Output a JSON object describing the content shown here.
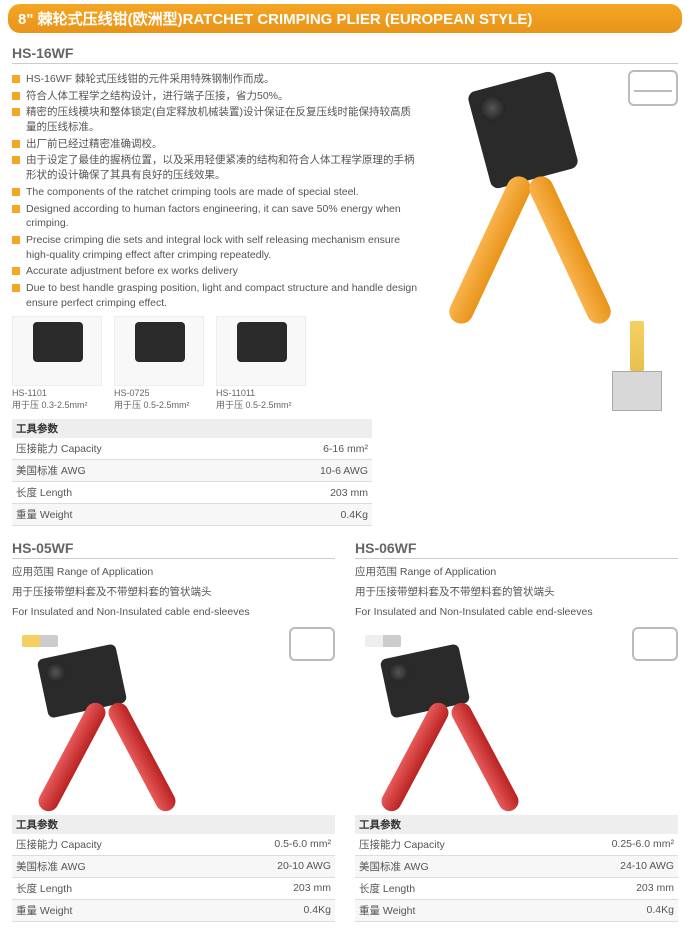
{
  "header": "8\" 棘轮式压线钳(欧洲型)RATCHET CRIMPING PLIER (EUROPEAN STYLE)",
  "hs16wf": {
    "model": "HS-16WF",
    "bullets_cn": [
      "HS-16WF 棘轮式压线钳的元件采用特殊钢制作而成。",
      "符合人体工程学之结构设计，进行端子压接，省力50%。",
      "精密的压线模块和整体锁定(自定释放机械装置)设计保证在反复压线时能保持较高质量的压线标准。",
      "出厂前已经过精密准确调校。",
      "由于设定了最佳的握柄位置，以及采用轻便紧凑的结构和符合人体工程学原理的手柄形状的设计确保了其具有良好的压线效果。"
    ],
    "bullets_en": [
      "The components of the ratchet crimping tools are made of special steel.",
      "Designed according to human factors engineering, it can save 50% energy when crimping.",
      "Precise crimping die sets and integral lock with self releasing mechanism ensure high-quality crimping effect after crimping repeatedly.",
      "Accurate adjustment before ex works delivery",
      "Due to best handle grasping position, light and compact structure and handle design ensure perfect crimping effect."
    ],
    "thumbs": [
      {
        "model": "HS-1101",
        "range": "用于压 0.3-2.5mm²"
      },
      {
        "model": "HS-0725",
        "range": "用于压 0.5-2.5mm²"
      },
      {
        "model": "HS-11011",
        "range": "用于压 0.5-2.5mm²"
      }
    ],
    "params_title": "工具参数",
    "params": [
      {
        "k": "压接能力 Capacity",
        "v": "6-16 mm²"
      },
      {
        "k": "美国标准 AWG",
        "v": "10-6 AWG"
      },
      {
        "k": "长度 Length",
        "v": "203 mm"
      },
      {
        "k": "重量 Weight",
        "v": "0.4Kg"
      }
    ]
  },
  "hs05wf": {
    "model": "HS-05WF",
    "range_title": "应用范围 Range of Application",
    "range_cn": "用于压接带塑料套及不带塑料套的管状端头",
    "range_en": "For Insulated and Non-Insulated cable end-sleeves",
    "params_title": "工具参数",
    "params": [
      {
        "k": "压接能力 Capacity",
        "v": "0.5-6.0 mm²"
      },
      {
        "k": "美国标准 AWG",
        "v": "20-10 AWG"
      },
      {
        "k": "长度 Length",
        "v": "203 mm"
      },
      {
        "k": "重量 Weight",
        "v": "0.4Kg"
      }
    ]
  },
  "hs06wf": {
    "model": "HS-06WF",
    "range_title": "应用范围 Range of Application",
    "range_cn": "用于压接带塑料套及不带塑料套的管状端头",
    "range_en": "For Insulated and Non-Insulated cable end-sleeves",
    "params_title": "工具参数",
    "params": [
      {
        "k": "压接能力 Capacity",
        "v": "0.25-6.0 mm²"
      },
      {
        "k": "美国标准 AWG",
        "v": "24-10 AWG"
      },
      {
        "k": "长度 Length",
        "v": "203 mm"
      },
      {
        "k": "重量 Weight",
        "v": "0.4Kg"
      }
    ]
  }
}
